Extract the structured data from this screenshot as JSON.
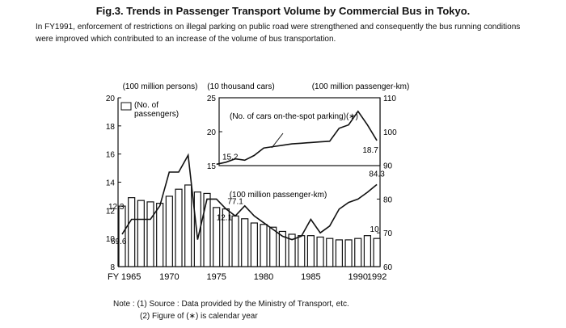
{
  "title": "Fig.3. Trends in Passenger Transport Volume by Commercial Bus in Tokyo.",
  "subtitle": "In FY1991, enforcement of restrictions on illegal parking on public road were strengthened and consequently the bus running conditions were improved which contributed to an increase of the volume of bus transportation.",
  "notes": {
    "line1": "Note : (1) Source : Data provided by the Ministry of Transport, etc.",
    "line2": "(2) Figure of (∗) is calendar year"
  },
  "chart_data": [
    {
      "type": "bar",
      "role": "main",
      "left_axis_title": "(100 million persons)",
      "right_axis_title": "(100 million passenger-km)",
      "x_first_label": "FY 1965",
      "x_ticks": [
        1965,
        1970,
        1975,
        1980,
        1985,
        1990,
        1992
      ],
      "x_tick_labels": [
        "FY 1965",
        "1970",
        "1975",
        "1980",
        "1985",
        "1990",
        "1992"
      ],
      "ylim_left": [
        8,
        20
      ],
      "yticks_left": [
        8,
        10,
        12,
        14,
        16,
        18,
        20
      ],
      "ylim_right": [
        60,
        110
      ],
      "yticks_right": [
        60,
        70,
        80,
        90,
        100,
        110
      ],
      "legend": "(No. of passengers)",
      "passengers": {
        "years": [
          1965,
          1966,
          1967,
          1968,
          1969,
          1970,
          1971,
          1972,
          1973,
          1974,
          1975,
          1976,
          1977,
          1978,
          1979,
          1980,
          1981,
          1982,
          1983,
          1984,
          1985,
          1986,
          1987,
          1988,
          1989,
          1990,
          1991,
          1992
        ],
        "values": [
          12.3,
          12.9,
          12.7,
          12.6,
          12.5,
          13.0,
          13.5,
          13.8,
          13.3,
          13.2,
          12.2,
          12.1,
          11.6,
          11.4,
          11.1,
          11.0,
          10.8,
          10.5,
          10.3,
          10.2,
          10.2,
          10.1,
          10.0,
          9.9,
          9.9,
          10.0,
          10.2,
          10.0
        ]
      },
      "passenger_km": {
        "name": "(100 million passenger-km)",
        "years": [
          1965,
          1966,
          1967,
          1968,
          1969,
          1970,
          1971,
          1972,
          1973,
          1974,
          1975,
          1976,
          1977,
          1978,
          1979,
          1980,
          1981,
          1982,
          1983,
          1984,
          1985,
          1986,
          1987,
          1988,
          1989,
          1990,
          1991,
          1992
        ],
        "values": [
          69.6,
          74.0,
          74.0,
          74.0,
          78.0,
          88.0,
          88.0,
          93.0,
          68.0,
          80.0,
          80.0,
          77.1,
          75.0,
          78.0,
          75.0,
          73.0,
          71.0,
          69.0,
          68.0,
          69.0,
          74.0,
          70.0,
          72.0,
          77.0,
          79.0,
          80.0,
          82.0,
          84.3
        ]
      },
      "labels": {
        "passengers_start": "12.3",
        "passengers_end": "10",
        "passenger_km_start": "69.6",
        "passenger_km_end": "84.3",
        "passenger_km_mid": "77.1",
        "passengers_mid": "12.1"
      }
    },
    {
      "type": "line",
      "role": "inset",
      "axis_title": "(10 thousand cars)",
      "series_label": "(No. of cars on-the-spot parking)(∗)",
      "ylim": [
        15,
        25
      ],
      "yticks": [
        15,
        20,
        25
      ],
      "years": [
        1975,
        1976,
        1977,
        1978,
        1979,
        1980,
        1981,
        1982,
        1983,
        1984,
        1985,
        1986,
        1987,
        1988,
        1989,
        1990,
        1991,
        1992
      ],
      "values": [
        15.2,
        15.5,
        16.0,
        15.8,
        16.5,
        17.6,
        17.8,
        18.0,
        18.2,
        18.3,
        18.4,
        18.5,
        18.6,
        20.5,
        21.0,
        23.0,
        21.0,
        18.7
      ],
      "start_label": "15.2",
      "end_label": "18.7"
    }
  ]
}
